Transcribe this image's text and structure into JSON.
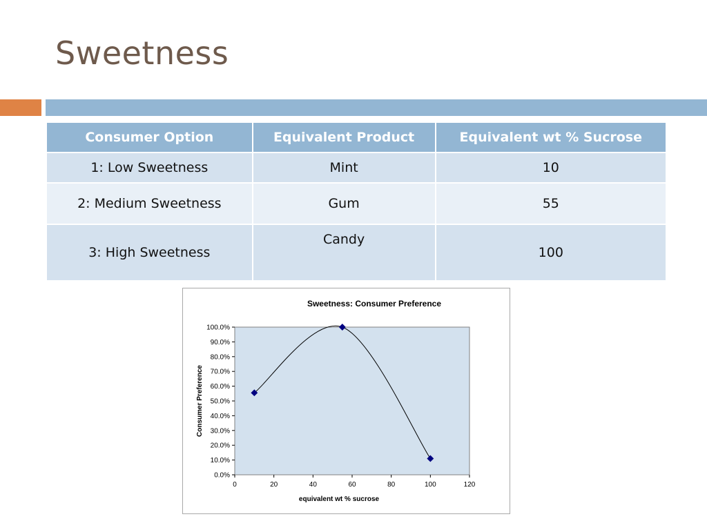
{
  "slide": {
    "title": "Sweetness"
  },
  "table": {
    "headers": [
      "Consumer Option",
      "Equivalent Product",
      "Equivalent  wt % Sucrose"
    ],
    "rows": [
      [
        "1: Low Sweetness",
        "Mint",
        "10"
      ],
      [
        "2: Medium Sweetness",
        "Gum",
        "55"
      ],
      [
        "3: High Sweetness",
        "Candy",
        "100"
      ]
    ]
  },
  "colors": {
    "accent_orange": "#df8345",
    "accent_blue": "#93b6d3",
    "title_brown": "#6e5a4c",
    "plot_area": "#d3e1ee",
    "marker": "#000080"
  },
  "chart_data": {
    "type": "scatter",
    "title": "Sweetness: Consumer Preference",
    "xlabel": "equivalent wt % sucrose",
    "ylabel": "Consumer Preference",
    "xlim": [
      0,
      120
    ],
    "ylim": [
      0,
      1
    ],
    "x_ticks": [
      "0",
      "20",
      "40",
      "60",
      "80",
      "100",
      "120"
    ],
    "y_ticks": [
      "0.0%",
      "10.0%",
      "20.0%",
      "30.0%",
      "40.0%",
      "50.0%",
      "60.0%",
      "70.0%",
      "80.0%",
      "90.0%",
      "100.0%"
    ],
    "grid": false,
    "legend": "none",
    "line_style": "smoothed",
    "series": [
      {
        "x": [
          10,
          55,
          100
        ],
        "y": [
          0.555,
          1.0,
          0.11
        ]
      }
    ]
  }
}
